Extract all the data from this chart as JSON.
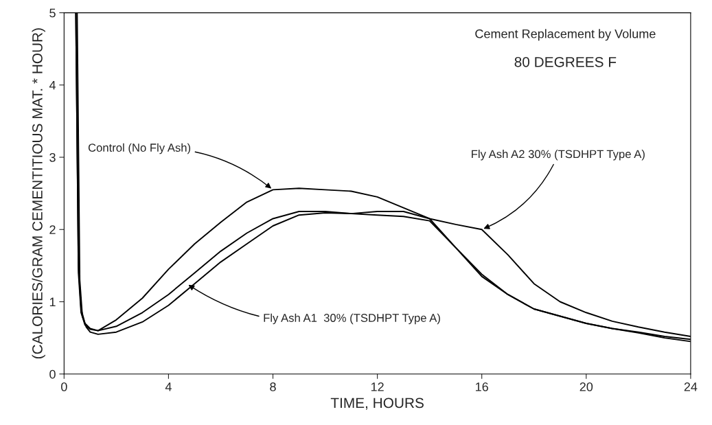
{
  "chart_data": {
    "type": "line",
    "xlabel": "TIME, HOURS",
    "ylabel": "(CALORIES/GRAM CEMENTITIOUS MAT. * HOUR)",
    "annotations": [
      "Cement Replacement by Volume",
      "80 DEGREES F",
      {
        "text": "Control (No Fly Ash)",
        "x": 8,
        "y": 2.55
      },
      {
        "text": "Fly Ash A1  30% (TSDHPT Type A)",
        "x": 4.7,
        "y": 1.25
      },
      {
        "text": "Fly Ash A2 30% (TSDHPT Type A)",
        "x": 16,
        "y": 2.0
      }
    ],
    "xlim": [
      0,
      24
    ],
    "ylim": [
      0,
      5
    ],
    "xticks": [
      0,
      4,
      8,
      12,
      16,
      20,
      24
    ],
    "yticks": [
      0,
      1,
      2,
      3,
      4,
      5
    ],
    "grid": false,
    "legend": false,
    "marker": "none",
    "line_style": "solid",
    "series": [
      {
        "color": "#000000",
        "x": [
          0.45,
          0.55,
          0.65,
          0.8,
          1.0,
          1.3,
          2,
          3,
          4,
          5,
          6,
          7,
          8,
          9,
          10,
          11,
          12,
          13,
          14,
          15,
          16,
          17,
          18,
          19,
          20,
          21,
          22,
          23,
          24
        ],
        "values": [
          5,
          1.5,
          0.9,
          0.7,
          0.63,
          0.6,
          0.75,
          1.05,
          1.45,
          1.8,
          2.1,
          2.38,
          2.55,
          2.57,
          2.55,
          2.53,
          2.45,
          2.3,
          2.15,
          1.75,
          1.35,
          1.1,
          0.9,
          0.8,
          0.7,
          0.63,
          0.58,
          0.52,
          0.48
        ]
      },
      {
        "color": "#000000",
        "x": [
          0.45,
          0.55,
          0.65,
          0.8,
          1.0,
          1.3,
          2,
          3,
          4,
          5,
          6,
          7,
          8,
          9,
          10,
          11,
          12,
          13,
          14,
          15,
          16,
          17,
          18,
          19,
          20,
          21,
          22,
          23,
          24
        ],
        "values": [
          5,
          1.4,
          0.85,
          0.68,
          0.62,
          0.6,
          0.66,
          0.85,
          1.1,
          1.4,
          1.7,
          1.95,
          2.15,
          2.25,
          2.25,
          2.22,
          2.2,
          2.18,
          2.12,
          1.75,
          1.38,
          1.1,
          0.9,
          0.8,
          0.7,
          0.63,
          0.57,
          0.5,
          0.45
        ]
      },
      {
        "color": "#000000",
        "x": [
          0.5,
          0.6,
          0.7,
          0.85,
          1.0,
          1.3,
          2,
          3,
          4,
          5,
          6,
          7,
          8,
          9,
          10,
          11,
          12,
          13,
          14,
          15,
          16,
          17,
          18,
          19,
          20,
          21,
          22,
          23,
          24
        ],
        "values": [
          5,
          1.3,
          0.8,
          0.65,
          0.58,
          0.55,
          0.58,
          0.72,
          0.95,
          1.25,
          1.55,
          1.8,
          2.05,
          2.2,
          2.23,
          2.22,
          2.25,
          2.25,
          2.15,
          2.07,
          2.0,
          1.65,
          1.25,
          1.0,
          0.85,
          0.73,
          0.65,
          0.58,
          0.52
        ]
      }
    ]
  }
}
